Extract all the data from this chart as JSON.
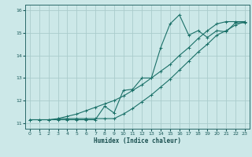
{
  "xlabel": "Humidex (Indice chaleur)",
  "xlim": [
    -0.5,
    23.5
  ],
  "ylim": [
    10.75,
    16.25
  ],
  "xticks": [
    0,
    1,
    2,
    3,
    4,
    5,
    6,
    7,
    8,
    9,
    10,
    11,
    12,
    13,
    14,
    15,
    16,
    17,
    18,
    19,
    20,
    21,
    22,
    23
  ],
  "yticks": [
    11,
    12,
    13,
    14,
    15,
    16
  ],
  "bg_color": "#cce8e8",
  "grid_color": "#aacccc",
  "line_color": "#1a7068",
  "line1_x": [
    0,
    1,
    2,
    3,
    4,
    5,
    6,
    7,
    8,
    9,
    10,
    11,
    12,
    13,
    14,
    15,
    16,
    17,
    18,
    19,
    20,
    21,
    22,
    23
  ],
  "line1_y": [
    11.15,
    11.15,
    11.15,
    11.15,
    11.15,
    11.15,
    11.15,
    11.15,
    11.75,
    11.45,
    12.45,
    12.5,
    13.0,
    13.0,
    14.35,
    15.4,
    15.8,
    14.9,
    15.1,
    14.8,
    15.1,
    15.05,
    15.45,
    15.45
  ],
  "line2_x": [
    0,
    1,
    2,
    3,
    4,
    5,
    6,
    7,
    8,
    9,
    10,
    11,
    12,
    13,
    14,
    15,
    16,
    17,
    18,
    19,
    20,
    21,
    22,
    23
  ],
  "line2_y": [
    11.15,
    11.15,
    11.15,
    11.2,
    11.2,
    11.2,
    11.2,
    11.2,
    11.2,
    11.2,
    11.4,
    11.65,
    11.95,
    12.25,
    12.6,
    12.95,
    13.35,
    13.75,
    14.15,
    14.5,
    14.9,
    15.1,
    15.35,
    15.5
  ],
  "line3_x": [
    3,
    4,
    5,
    6,
    7,
    8,
    9,
    10,
    11,
    12,
    13,
    14,
    15,
    16,
    17,
    18,
    19,
    20,
    21,
    22,
    23
  ],
  "line3_y": [
    11.2,
    11.3,
    11.4,
    11.55,
    11.7,
    11.85,
    12.0,
    12.2,
    12.45,
    12.7,
    13.0,
    13.3,
    13.6,
    14.0,
    14.35,
    14.75,
    15.1,
    15.4,
    15.5,
    15.5,
    15.5
  ]
}
